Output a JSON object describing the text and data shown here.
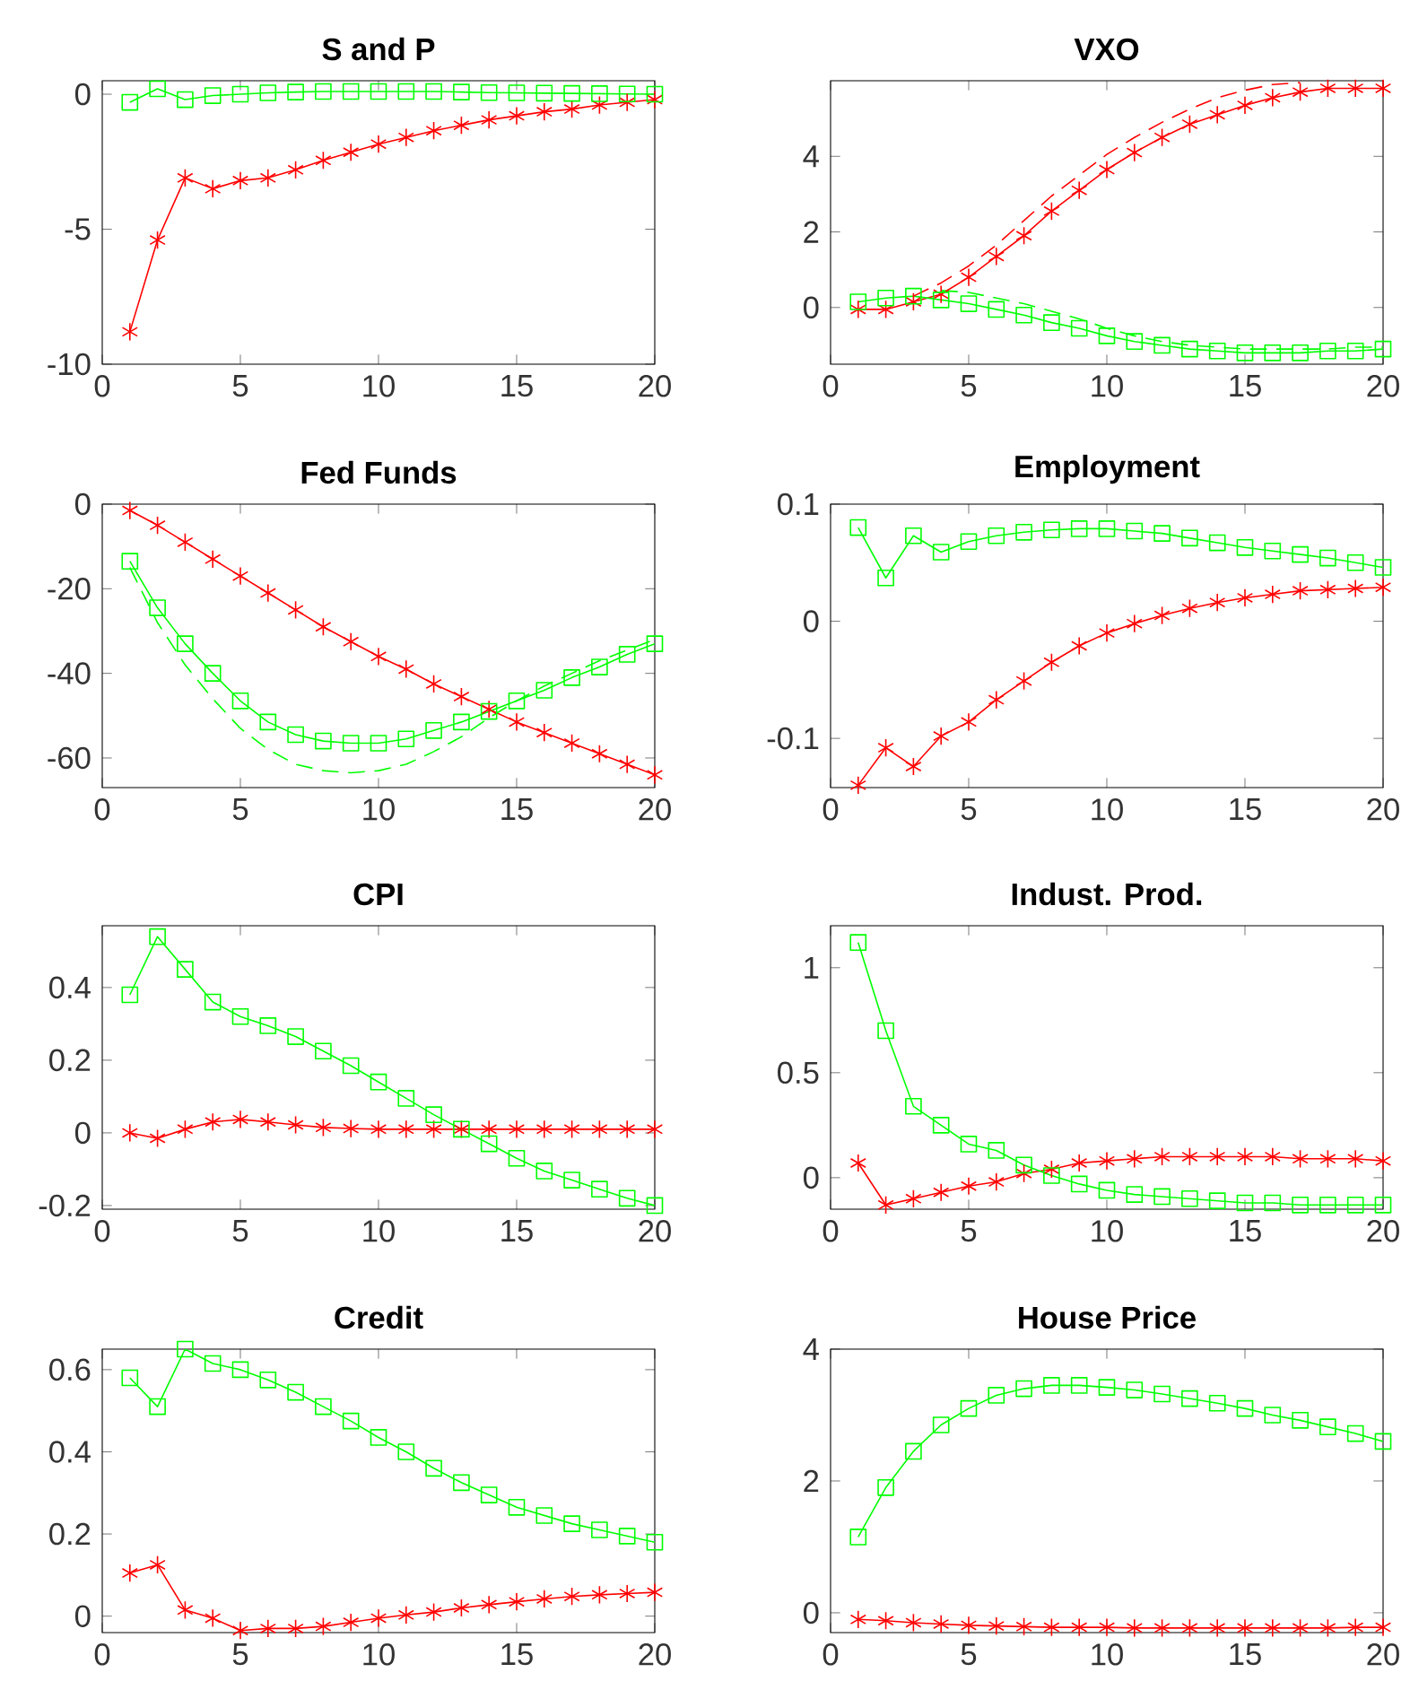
{
  "chart_data": [
    {
      "type": "line",
      "title": "S and P",
      "x": [
        1,
        2,
        3,
        4,
        5,
        6,
        7,
        8,
        9,
        10,
        11,
        12,
        13,
        14,
        15,
        16,
        17,
        18,
        19,
        20
      ],
      "xlim": [
        0,
        20
      ],
      "xticks": [
        0,
        5,
        10,
        15,
        20
      ],
      "ylim": [
        -10,
        0.5
      ],
      "yticks": [
        -10,
        -5,
        0
      ],
      "grid": false,
      "series": [
        {
          "color": "#ff0000",
          "marker": "cross",
          "line_style": "solid",
          "values": [
            -8.8,
            -5.4,
            -3.1,
            -3.5,
            -3.2,
            -3.1,
            -2.8,
            -2.45,
            -2.15,
            -1.85,
            -1.6,
            -1.35,
            -1.15,
            -0.95,
            -0.8,
            -0.65,
            -0.55,
            -0.4,
            -0.3,
            -0.2
          ]
        },
        {
          "color": "#00ff00",
          "marker": "square",
          "line_style": "solid",
          "values": [
            -0.3,
            0.2,
            -0.2,
            -0.05,
            0,
            0.05,
            0.08,
            0.1,
            0.1,
            0.1,
            0.1,
            0.1,
            0.08,
            0.06,
            0.05,
            0.04,
            0.03,
            0.02,
            0.01,
            0
          ]
        }
      ]
    },
    {
      "type": "line",
      "title": "VXO",
      "x": [
        1,
        2,
        3,
        4,
        5,
        6,
        7,
        8,
        9,
        10,
        11,
        12,
        13,
        14,
        15,
        16,
        17,
        18,
        19,
        20
      ],
      "xlim": [
        0,
        20
      ],
      "xticks": [
        0,
        5,
        10,
        15,
        20
      ],
      "ylim": [
        -1.5,
        6
      ],
      "yticks": [
        0,
        2,
        4
      ],
      "grid": false,
      "series": [
        {
          "color": "#ff0000",
          "marker": "cross",
          "line_style": "solid",
          "values": [
            -0.05,
            -0.05,
            0.15,
            0.35,
            0.8,
            1.35,
            1.9,
            2.55,
            3.1,
            3.65,
            4.1,
            4.5,
            4.85,
            5.1,
            5.35,
            5.55,
            5.7,
            5.8,
            5.8,
            5.8
          ]
        },
        {
          "color": "#00ff00",
          "marker": "square",
          "line_style": "solid",
          "values": [
            0.15,
            0.25,
            0.3,
            0.2,
            0.1,
            -0.05,
            -0.2,
            -0.4,
            -0.55,
            -0.75,
            -0.9,
            -1.0,
            -1.1,
            -1.15,
            -1.2,
            -1.2,
            -1.2,
            -1.15,
            -1.15,
            -1.1
          ]
        },
        {
          "color": "#ff0000",
          "marker": "none",
          "line_style": "dashed",
          "x": [
            3,
            4,
            5,
            6,
            7,
            8,
            9,
            10,
            11,
            12,
            13,
            14,
            15,
            16,
            17
          ],
          "values": [
            0.3,
            0.65,
            1.1,
            1.65,
            2.3,
            2.95,
            3.5,
            4.05,
            4.5,
            4.9,
            5.25,
            5.55,
            5.75,
            5.9,
            5.95
          ]
        },
        {
          "color": "#00ff00",
          "marker": "none",
          "line_style": "dashed",
          "x": [
            4,
            5,
            6,
            7,
            8,
            9,
            10,
            11,
            12,
            13,
            14,
            15,
            16,
            17,
            18,
            19,
            20
          ],
          "values": [
            0.45,
            0.4,
            0.25,
            0.1,
            -0.1,
            -0.3,
            -0.55,
            -0.75,
            -0.9,
            -1.0,
            -1.05,
            -1.1,
            -1.1,
            -1.1,
            -1.1,
            -1.05,
            -1.05
          ]
        }
      ]
    },
    {
      "type": "line",
      "title": "Fed Funds",
      "x": [
        1,
        2,
        3,
        4,
        5,
        6,
        7,
        8,
        9,
        10,
        11,
        12,
        13,
        14,
        15,
        16,
        17,
        18,
        19,
        20
      ],
      "xlim": [
        0,
        20
      ],
      "xticks": [
        0,
        5,
        10,
        15,
        20
      ],
      "ylim": [
        -67,
        0
      ],
      "yticks": [
        -60,
        -40,
        -20,
        0
      ],
      "grid": false,
      "series": [
        {
          "color": "#ff0000",
          "marker": "cross",
          "line_style": "solid",
          "values": [
            -1.5,
            -5,
            -9,
            -13,
            -17,
            -21,
            -25,
            -29,
            -32.5,
            -36,
            -39,
            -42.5,
            -45.5,
            -48.5,
            -51.5,
            -54,
            -56.5,
            -59,
            -61.5,
            -64
          ]
        },
        {
          "color": "#00ff00",
          "marker": "square",
          "line_style": "solid",
          "values": [
            -13.5,
            -24.5,
            -33,
            -40,
            -46.5,
            -51.5,
            -54.5,
            -56,
            -56.5,
            -56.5,
            -55.5,
            -53.5,
            -51.5,
            -49,
            -46.5,
            -44,
            -41,
            -38.5,
            -35.5,
            -33
          ]
        },
        {
          "color": "#00ff00",
          "marker": "none",
          "line_style": "dashed",
          "x": [
            1,
            2,
            3,
            4,
            5,
            6,
            7,
            8,
            9,
            10,
            11,
            12,
            13,
            14,
            15,
            16,
            17,
            18,
            19,
            20
          ],
          "values": [
            -15,
            -28,
            -38,
            -46,
            -53,
            -58,
            -61.5,
            -63,
            -63.5,
            -63,
            -61.5,
            -58.5,
            -55,
            -50.5,
            -46.5,
            -43,
            -40,
            -37,
            -34.5,
            -32
          ]
        }
      ]
    },
    {
      "type": "line",
      "title": "Employment",
      "x": [
        1,
        2,
        3,
        4,
        5,
        6,
        7,
        8,
        9,
        10,
        11,
        12,
        13,
        14,
        15,
        16,
        17,
        18,
        19,
        20
      ],
      "xlim": [
        0,
        20
      ],
      "xticks": [
        0,
        5,
        10,
        15,
        20
      ],
      "ylim": [
        -0.142,
        0.1
      ],
      "yticks": [
        -0.1,
        0,
        0.1
      ],
      "grid": false,
      "series": [
        {
          "color": "#ff0000",
          "marker": "cross",
          "line_style": "solid",
          "values": [
            -0.14,
            -0.108,
            -0.124,
            -0.098,
            -0.086,
            -0.067,
            -0.051,
            -0.035,
            -0.021,
            -0.01,
            -0.002,
            0.005,
            0.011,
            0.016,
            0.02,
            0.023,
            0.026,
            0.027,
            0.028,
            0.029
          ]
        },
        {
          "color": "#00ff00",
          "marker": "square",
          "line_style": "solid",
          "values": [
            0.08,
            0.037,
            0.073,
            0.059,
            0.068,
            0.073,
            0.076,
            0.078,
            0.079,
            0.079,
            0.077,
            0.075,
            0.071,
            0.067,
            0.063,
            0.06,
            0.057,
            0.054,
            0.05,
            0.046
          ]
        }
      ]
    },
    {
      "type": "line",
      "title": "CPI",
      "x": [
        1,
        2,
        3,
        4,
        5,
        6,
        7,
        8,
        9,
        10,
        11,
        12,
        13,
        14,
        15,
        16,
        17,
        18,
        19,
        20
      ],
      "xlim": [
        0,
        20
      ],
      "xticks": [
        0,
        5,
        10,
        15,
        20
      ],
      "ylim": [
        -0.21,
        0.57
      ],
      "yticks": [
        -0.2,
        0,
        0.2,
        0.4
      ],
      "grid": false,
      "series": [
        {
          "color": "#ff0000",
          "marker": "cross",
          "line_style": "solid",
          "values": [
            0,
            -0.015,
            0.01,
            0.03,
            0.037,
            0.03,
            0.022,
            0.015,
            0.012,
            0.01,
            0.01,
            0.01,
            0.01,
            0.01,
            0.01,
            0.01,
            0.01,
            0.01,
            0.01,
            0.01
          ]
        },
        {
          "color": "#00ff00",
          "marker": "square",
          "line_style": "solid",
          "values": [
            0.38,
            0.54,
            0.45,
            0.36,
            0.32,
            0.295,
            0.265,
            0.225,
            0.185,
            0.14,
            0.095,
            0.05,
            0.01,
            -0.03,
            -0.07,
            -0.105,
            -0.13,
            -0.155,
            -0.18,
            -0.2
          ]
        }
      ]
    },
    {
      "type": "line",
      "title": "Indust. Prod.",
      "x": [
        1,
        2,
        3,
        4,
        5,
        6,
        7,
        8,
        9,
        10,
        11,
        12,
        13,
        14,
        15,
        16,
        17,
        18,
        19,
        20
      ],
      "xlim": [
        0,
        20
      ],
      "xticks": [
        0,
        5,
        10,
        15,
        20
      ],
      "ylim": [
        -0.15,
        1.2
      ],
      "yticks": [
        0,
        0.5,
        1
      ],
      "grid": false,
      "series": [
        {
          "color": "#ff0000",
          "marker": "cross",
          "line_style": "solid",
          "values": [
            0.07,
            -0.13,
            -0.1,
            -0.07,
            -0.04,
            -0.02,
            0.02,
            0.04,
            0.07,
            0.08,
            0.09,
            0.1,
            0.1,
            0.1,
            0.1,
            0.1,
            0.09,
            0.09,
            0.09,
            0.08
          ]
        },
        {
          "color": "#00ff00",
          "marker": "square",
          "line_style": "solid",
          "values": [
            1.12,
            0.7,
            0.34,
            0.25,
            0.16,
            0.13,
            0.06,
            0.01,
            -0.03,
            -0.06,
            -0.08,
            -0.09,
            -0.1,
            -0.11,
            -0.12,
            -0.12,
            -0.13,
            -0.13,
            -0.13,
            -0.13
          ]
        }
      ]
    },
    {
      "type": "line",
      "title": "Credit",
      "x": [
        1,
        2,
        3,
        4,
        5,
        6,
        7,
        8,
        9,
        10,
        11,
        12,
        13,
        14,
        15,
        16,
        17,
        18,
        19,
        20
      ],
      "xlim": [
        0,
        20
      ],
      "xticks": [
        0,
        5,
        10,
        15,
        20
      ],
      "ylim": [
        -0.04,
        0.65
      ],
      "yticks": [
        0,
        0.2,
        0.4,
        0.6
      ],
      "grid": false,
      "series": [
        {
          "color": "#ff0000",
          "marker": "cross",
          "line_style": "solid",
          "values": [
            0.105,
            0.125,
            0.015,
            -0.005,
            -0.035,
            -0.03,
            -0.03,
            -0.025,
            -0.015,
            -0.005,
            0.003,
            0.01,
            0.02,
            0.028,
            0.035,
            0.042,
            0.048,
            0.052,
            0.055,
            0.058
          ]
        },
        {
          "color": "#00ff00",
          "marker": "square",
          "line_style": "solid",
          "values": [
            0.58,
            0.51,
            0.65,
            0.615,
            0.6,
            0.575,
            0.545,
            0.51,
            0.475,
            0.435,
            0.4,
            0.36,
            0.325,
            0.295,
            0.265,
            0.245,
            0.225,
            0.21,
            0.195,
            0.18
          ]
        }
      ]
    },
    {
      "type": "line",
      "title": "House Price",
      "x": [
        1,
        2,
        3,
        4,
        5,
        6,
        7,
        8,
        9,
        10,
        11,
        12,
        13,
        14,
        15,
        16,
        17,
        18,
        19,
        20
      ],
      "xlim": [
        0,
        20
      ],
      "xticks": [
        0,
        5,
        10,
        15,
        20
      ],
      "ylim": [
        -0.3,
        4
      ],
      "yticks": [
        0,
        2,
        4
      ],
      "grid": false,
      "series": [
        {
          "color": "#ff0000",
          "marker": "cross",
          "line_style": "solid",
          "values": [
            -0.1,
            -0.12,
            -0.15,
            -0.17,
            -0.19,
            -0.2,
            -0.21,
            -0.22,
            -0.22,
            -0.22,
            -0.23,
            -0.23,
            -0.23,
            -0.23,
            -0.23,
            -0.23,
            -0.23,
            -0.23,
            -0.22,
            -0.22
          ]
        },
        {
          "color": "#00ff00",
          "marker": "square",
          "line_style": "solid",
          "values": [
            1.15,
            1.9,
            2.45,
            2.85,
            3.1,
            3.3,
            3.4,
            3.45,
            3.45,
            3.42,
            3.38,
            3.32,
            3.25,
            3.18,
            3.1,
            3.0,
            2.92,
            2.82,
            2.72,
            2.6
          ]
        }
      ]
    }
  ]
}
